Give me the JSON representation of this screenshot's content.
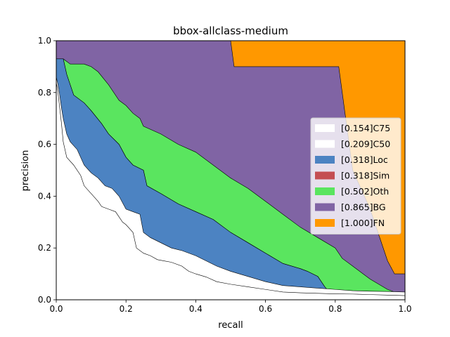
{
  "chart_data": {
    "type": "area",
    "title": "bbox-allclass-medium",
    "xlabel": "recall",
    "ylabel": "precision",
    "xlim": [
      0,
      1
    ],
    "ylim": [
      0,
      1
    ],
    "xticks": [
      "0.0",
      "0.2",
      "0.4",
      "0.6",
      "0.8",
      "1.0"
    ],
    "yticks": [
      "0.0",
      "0.2",
      "0.4",
      "0.6",
      "0.8",
      "1.0"
    ],
    "grid": false,
    "legend_position": "right",
    "series": [
      {
        "name": "[0.154]C75",
        "color": "#ffffff",
        "x": [
          0,
          0.005,
          0.01,
          0.015,
          0.02,
          0.03,
          0.05,
          0.07,
          0.08,
          0.1,
          0.12,
          0.13,
          0.15,
          0.17,
          0.19,
          0.2,
          0.22,
          0.23,
          0.25,
          0.27,
          0.29,
          0.31,
          0.33,
          0.36,
          0.38,
          0.4,
          0.43,
          0.46,
          0.5,
          0.55,
          0.6,
          0.65,
          0.7,
          0.75,
          0.8,
          0.85,
          0.9,
          0.95,
          1.0
        ],
        "y": [
          0.84,
          0.8,
          0.74,
          0.68,
          0.61,
          0.55,
          0.52,
          0.48,
          0.44,
          0.41,
          0.38,
          0.36,
          0.35,
          0.34,
          0.3,
          0.29,
          0.26,
          0.2,
          0.18,
          0.17,
          0.155,
          0.15,
          0.145,
          0.13,
          0.11,
          0.1,
          0.088,
          0.07,
          0.06,
          0.05,
          0.04,
          0.03,
          0.027,
          0.025,
          0.023,
          0.022,
          0.02,
          0.018,
          0.016
        ]
      },
      {
        "name": "[0.209]C50",
        "color": "#ffffff",
        "x": [
          0,
          0.005,
          0.01,
          0.015,
          0.02,
          0.03,
          0.04,
          0.06,
          0.08,
          0.1,
          0.12,
          0.14,
          0.16,
          0.18,
          0.2,
          0.22,
          0.24,
          0.25,
          0.27,
          0.3,
          0.33,
          0.36,
          0.4,
          0.43,
          0.46,
          0.5,
          0.55,
          0.6,
          0.65,
          0.7,
          0.75,
          0.8,
          0.85,
          0.9,
          0.95,
          1.0
        ],
        "y": [
          0.86,
          0.83,
          0.79,
          0.74,
          0.7,
          0.64,
          0.61,
          0.58,
          0.52,
          0.49,
          0.47,
          0.44,
          0.43,
          0.4,
          0.35,
          0.34,
          0.33,
          0.26,
          0.24,
          0.22,
          0.2,
          0.19,
          0.17,
          0.15,
          0.13,
          0.11,
          0.09,
          0.07,
          0.055,
          0.05,
          0.045,
          0.04,
          0.035,
          0.033,
          0.032,
          0.03
        ]
      },
      {
        "name": "[0.318]Loc",
        "color": "#4c83c2",
        "x": [
          0,
          0.02,
          0.03,
          0.05,
          0.08,
          0.1,
          0.13,
          0.15,
          0.18,
          0.2,
          0.22,
          0.25,
          0.26,
          0.3,
          0.35,
          0.4,
          0.45,
          0.5,
          0.55,
          0.6,
          0.65,
          0.7,
          0.72,
          0.75,
          0.76,
          0.77,
          0.78,
          0.8,
          0.85,
          0.9,
          0.95,
          1.0
        ],
        "y": [
          0.93,
          0.93,
          0.87,
          0.79,
          0.76,
          0.73,
          0.68,
          0.64,
          0.6,
          0.55,
          0.52,
          0.5,
          0.44,
          0.41,
          0.37,
          0.34,
          0.31,
          0.26,
          0.22,
          0.18,
          0.14,
          0.12,
          0.11,
          0.09,
          0.07,
          0.05,
          0.035,
          0.032,
          0.031,
          0.03,
          0.03,
          0.03
        ]
      },
      {
        "name": "[0.318]Sim",
        "color": "#c44e52",
        "x": [
          0,
          0.02,
          0.03,
          0.05,
          0.08,
          0.1,
          0.13,
          0.15,
          0.18,
          0.2,
          0.22,
          0.25,
          0.26,
          0.3,
          0.35,
          0.4,
          0.45,
          0.5,
          0.55,
          0.6,
          0.65,
          0.7,
          0.72,
          0.75,
          0.76,
          0.77,
          0.78,
          0.8,
          0.85,
          0.9,
          0.95,
          1.0
        ],
        "y": [
          0.93,
          0.93,
          0.87,
          0.79,
          0.76,
          0.73,
          0.68,
          0.64,
          0.6,
          0.55,
          0.52,
          0.5,
          0.44,
          0.41,
          0.37,
          0.34,
          0.31,
          0.26,
          0.22,
          0.18,
          0.14,
          0.12,
          0.11,
          0.09,
          0.07,
          0.05,
          0.035,
          0.032,
          0.031,
          0.03,
          0.03,
          0.03
        ]
      },
      {
        "name": "[0.502]Oth",
        "color": "#5ae55f",
        "x": [
          0,
          0.02,
          0.04,
          0.08,
          0.1,
          0.12,
          0.15,
          0.18,
          0.2,
          0.22,
          0.24,
          0.25,
          0.3,
          0.35,
          0.4,
          0.45,
          0.5,
          0.55,
          0.6,
          0.65,
          0.7,
          0.75,
          0.8,
          0.82,
          0.85,
          0.88,
          0.9,
          0.95,
          0.97,
          1.0
        ],
        "y": [
          0.93,
          0.93,
          0.91,
          0.91,
          0.9,
          0.88,
          0.83,
          0.77,
          0.75,
          0.72,
          0.7,
          0.67,
          0.64,
          0.6,
          0.57,
          0.52,
          0.47,
          0.43,
          0.38,
          0.33,
          0.28,
          0.24,
          0.2,
          0.16,
          0.13,
          0.1,
          0.08,
          0.04,
          0.03,
          0.03
        ]
      },
      {
        "name": "[0.865]BG",
        "color": "#8064a4",
        "x": [
          0,
          0.5,
          0.51,
          0.81,
          0.83,
          0.85,
          0.9,
          0.95,
          0.97,
          1.0
        ],
        "y": [
          1.0,
          1.0,
          0.9,
          0.9,
          0.7,
          0.5,
          0.35,
          0.15,
          0.1,
          0.1
        ]
      },
      {
        "name": "[1.000]FN",
        "color": "#ff9800",
        "x": [
          0,
          1.0
        ],
        "y": [
          1.0,
          1.0
        ]
      }
    ]
  }
}
